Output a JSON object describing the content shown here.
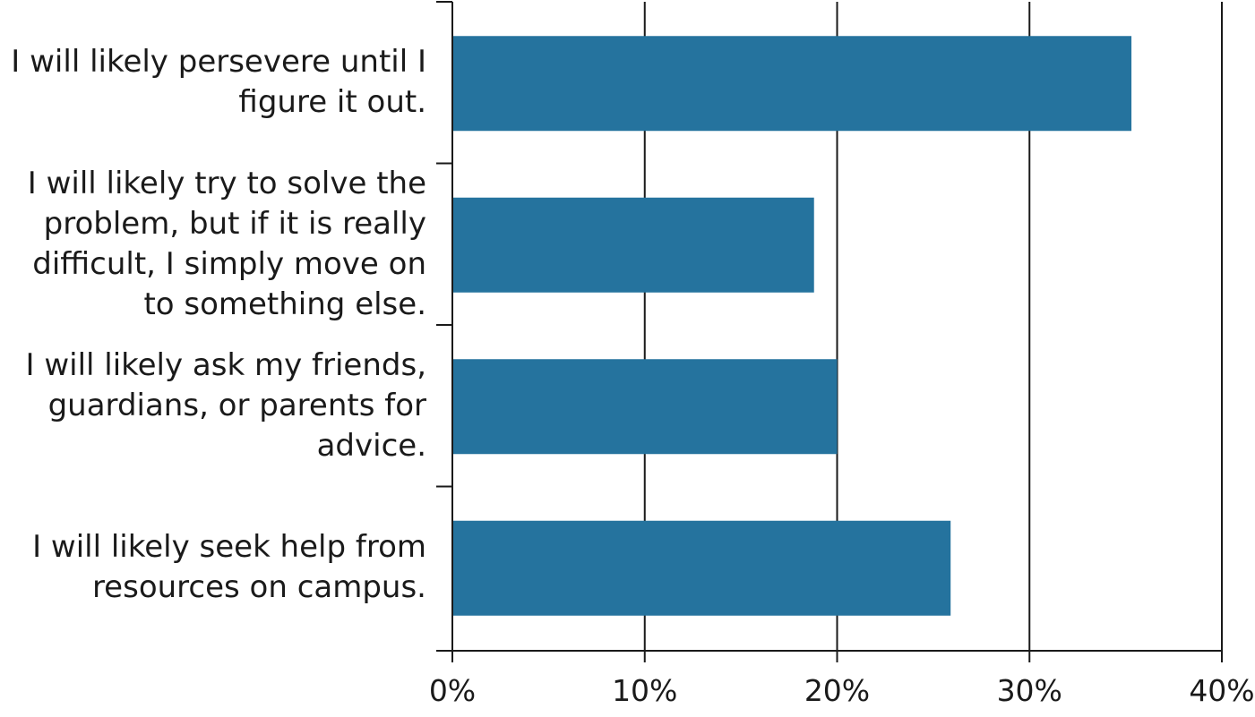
{
  "chart_data": {
    "type": "bar",
    "orientation": "horizontal",
    "categories": [
      "I will likely persevere until I figure it out.",
      "I will likely try to solve the problem, but if it is really difficult, I simply move on to something else.",
      "I will likely ask my friends, guardians, or parents for advice.",
      "I will likely seek help from resources on campus."
    ],
    "values": [
      35.3,
      18.8,
      20,
      25.9
    ],
    "x_ticks": [
      "0%",
      "10%",
      "20%",
      "30%",
      "40%"
    ],
    "xlim": [
      0,
      40
    ],
    "title": "",
    "xlabel": "",
    "ylabel": "",
    "grid": "vertical",
    "bar_color": "#25739e"
  }
}
